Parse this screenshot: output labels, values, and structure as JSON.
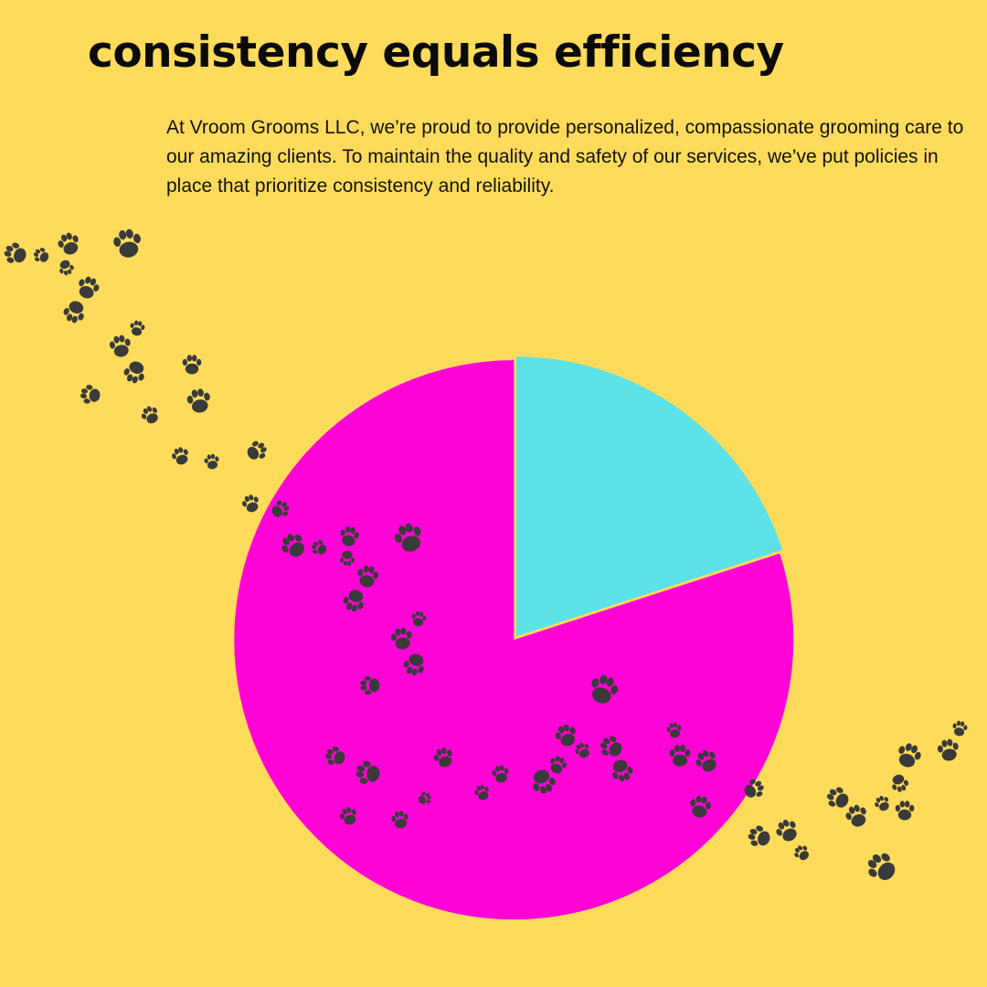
{
  "header": {
    "title": "consistency equals efficiency",
    "intro": "At Vroom Grooms LLC, we’re proud to provide personalized, compassionate grooming care to our amazing clients. To maintain the quality and safety of our services, we’ve put policies in place that prioritize consistency and reliability."
  },
  "colors": {
    "background": "#FEDB5A",
    "paw": "#3a3a3a"
  },
  "decoration": {
    "icon": "paw-print-icon"
  },
  "chart_data": {
    "type": "pie",
    "title": "",
    "slices": [
      {
        "label": "",
        "value": 20,
        "color": "#5CE1E6",
        "exploded": true
      },
      {
        "label": "",
        "value": 80,
        "color": "#FF03D7",
        "exploded": false
      }
    ],
    "start_angle_deg": 0,
    "direction": "clockwise",
    "legend": "none"
  }
}
